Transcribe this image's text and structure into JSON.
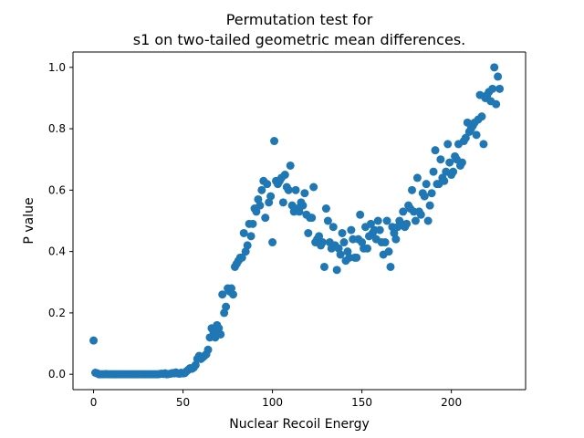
{
  "chart_data": {
    "type": "scatter",
    "title_line1": "Permutation test for",
    "title_line2": "s1 on two-tailed geometric mean differences.",
    "xlabel": "Nuclear Recoil Energy",
    "ylabel": "P value",
    "xlim": [
      -11.5,
      241.5
    ],
    "ylim": [
      -0.05,
      1.05
    ],
    "xticks": [
      0,
      50,
      100,
      150,
      200
    ],
    "xtick_labels": [
      "0",
      "50",
      "100",
      "150",
      "200"
    ],
    "yticks": [
      0.0,
      0.2,
      0.4,
      0.6,
      0.8,
      1.0
    ],
    "ytick_labels": [
      "0.0",
      "0.2",
      "0.4",
      "0.6",
      "0.8",
      "1.0"
    ],
    "grid": false,
    "legend": "none",
    "point_color": "#1f77b4",
    "points": [
      [
        0,
        0.11
      ],
      [
        1,
        0.005
      ],
      [
        2,
        0.003
      ],
      [
        3,
        0.0
      ],
      [
        4,
        0.0
      ],
      [
        5,
        0.0
      ],
      [
        6,
        0.0
      ],
      [
        7,
        0.001
      ],
      [
        8,
        0.0
      ],
      [
        9,
        0.0
      ],
      [
        10,
        0.0
      ],
      [
        11,
        0.0
      ],
      [
        12,
        0.0
      ],
      [
        13,
        0.0
      ],
      [
        14,
        0.0
      ],
      [
        15,
        0.0
      ],
      [
        16,
        0.0
      ],
      [
        17,
        0.0
      ],
      [
        18,
        0.0
      ],
      [
        19,
        0.0
      ],
      [
        20,
        0.0
      ],
      [
        21,
        0.0
      ],
      [
        22,
        0.0
      ],
      [
        23,
        0.0
      ],
      [
        24,
        0.0
      ],
      [
        25,
        0.0
      ],
      [
        26,
        0.0
      ],
      [
        27,
        0.0
      ],
      [
        28,
        0.0
      ],
      [
        29,
        0.0
      ],
      [
        30,
        0.0
      ],
      [
        31,
        0.0
      ],
      [
        32,
        0.0
      ],
      [
        33,
        0.0
      ],
      [
        34,
        0.0
      ],
      [
        35,
        0.0
      ],
      [
        36,
        0.0
      ],
      [
        37,
        0.001
      ],
      [
        38,
        0.002
      ],
      [
        39,
        0.001
      ],
      [
        40,
        0.003
      ],
      [
        41,
        0.0
      ],
      [
        42,
        0.001
      ],
      [
        43,
        0.002
      ],
      [
        44,
        0.004
      ],
      [
        45,
        0.003
      ],
      [
        46,
        0.006
      ],
      [
        47,
        0.003
      ],
      [
        48,
        0.002
      ],
      [
        49,
        0.005
      ],
      [
        50,
        0.003
      ],
      [
        51,
        0.004
      ],
      [
        52,
        0.01
      ],
      [
        53,
        0.015
      ],
      [
        54,
        0.02
      ],
      [
        55,
        0.018
      ],
      [
        56,
        0.022
      ],
      [
        57,
        0.03
      ],
      [
        58,
        0.05
      ],
      [
        59,
        0.06
      ],
      [
        60,
        0.05
      ],
      [
        61,
        0.055
      ],
      [
        62,
        0.06
      ],
      [
        63,
        0.065
      ],
      [
        64,
        0.08
      ],
      [
        65,
        0.12
      ],
      [
        66,
        0.15
      ],
      [
        67,
        0.14
      ],
      [
        68,
        0.12
      ],
      [
        69,
        0.16
      ],
      [
        70,
        0.15
      ],
      [
        71,
        0.13
      ],
      [
        72,
        0.26
      ],
      [
        73,
        0.2
      ],
      [
        74,
        0.22
      ],
      [
        75,
        0.28
      ],
      [
        76,
        0.27
      ],
      [
        77,
        0.28
      ],
      [
        78,
        0.26
      ],
      [
        79,
        0.35
      ],
      [
        80,
        0.36
      ],
      [
        81,
        0.37
      ],
      [
        82,
        0.38
      ],
      [
        83,
        0.38
      ],
      [
        84,
        0.46
      ],
      [
        85,
        0.4
      ],
      [
        86,
        0.42
      ],
      [
        87,
        0.49
      ],
      [
        88,
        0.45
      ],
      [
        89,
        0.49
      ],
      [
        90,
        0.54
      ],
      [
        91,
        0.53
      ],
      [
        92,
        0.57
      ],
      [
        93,
        0.55
      ],
      [
        94,
        0.6
      ],
      [
        95,
        0.63
      ],
      [
        96,
        0.51
      ],
      [
        97,
        0.62
      ],
      [
        98,
        0.56
      ],
      [
        99,
        0.58
      ],
      [
        100,
        0.43
      ],
      [
        101,
        0.76
      ],
      [
        102,
        0.63
      ],
      [
        103,
        0.62
      ],
      [
        104,
        0.63
      ],
      [
        105,
        0.64
      ],
      [
        106,
        0.56
      ],
      [
        107,
        0.65
      ],
      [
        108,
        0.61
      ],
      [
        109,
        0.6
      ],
      [
        110,
        0.68
      ],
      [
        111,
        0.55
      ],
      [
        112,
        0.53
      ],
      [
        113,
        0.6
      ],
      [
        114,
        0.54
      ],
      [
        115,
        0.53
      ],
      [
        116,
        0.56
      ],
      [
        117,
        0.55
      ],
      [
        118,
        0.59
      ],
      [
        119,
        0.52
      ],
      [
        120,
        0.46
      ],
      [
        121,
        0.51
      ],
      [
        122,
        0.51
      ],
      [
        123,
        0.61
      ],
      [
        124,
        0.43
      ],
      [
        125,
        0.44
      ],
      [
        126,
        0.45
      ],
      [
        127,
        0.42
      ],
      [
        128,
        0.43
      ],
      [
        129,
        0.35
      ],
      [
        130,
        0.54
      ],
      [
        131,
        0.5
      ],
      [
        132,
        0.43
      ],
      [
        133,
        0.41
      ],
      [
        134,
        0.48
      ],
      [
        135,
        0.42
      ],
      [
        136,
        0.34
      ],
      [
        137,
        0.41
      ],
      [
        138,
        0.39
      ],
      [
        139,
        0.46
      ],
      [
        140,
        0.43
      ],
      [
        141,
        0.37
      ],
      [
        142,
        0.4
      ],
      [
        143,
        0.38
      ],
      [
        144,
        0.47
      ],
      [
        145,
        0.44
      ],
      [
        146,
        0.38
      ],
      [
        147,
        0.38
      ],
      [
        148,
        0.44
      ],
      [
        149,
        0.52
      ],
      [
        150,
        0.43
      ],
      [
        151,
        0.41
      ],
      [
        152,
        0.48
      ],
      [
        153,
        0.41
      ],
      [
        154,
        0.45
      ],
      [
        155,
        0.49
      ],
      [
        156,
        0.46
      ],
      [
        157,
        0.47
      ],
      [
        158,
        0.44
      ],
      [
        159,
        0.5
      ],
      [
        160,
        0.47
      ],
      [
        161,
        0.43
      ],
      [
        162,
        0.39
      ],
      [
        163,
        0.43
      ],
      [
        164,
        0.5
      ],
      [
        165,
        0.4
      ],
      [
        166,
        0.35
      ],
      [
        167,
        0.48
      ],
      [
        168,
        0.46
      ],
      [
        169,
        0.44
      ],
      [
        170,
        0.48
      ],
      [
        171,
        0.5
      ],
      [
        172,
        0.49
      ],
      [
        173,
        0.53
      ],
      [
        174,
        0.48
      ],
      [
        175,
        0.49
      ],
      [
        176,
        0.55
      ],
      [
        177,
        0.54
      ],
      [
        178,
        0.6
      ],
      [
        179,
        0.53
      ],
      [
        180,
        0.5
      ],
      [
        181,
        0.64
      ],
      [
        182,
        0.53
      ],
      [
        183,
        0.52
      ],
      [
        184,
        0.59
      ],
      [
        185,
        0.58
      ],
      [
        186,
        0.62
      ],
      [
        187,
        0.5
      ],
      [
        188,
        0.55
      ],
      [
        189,
        0.59
      ],
      [
        190,
        0.66
      ],
      [
        191,
        0.73
      ],
      [
        192,
        0.62
      ],
      [
        193,
        0.62
      ],
      [
        194,
        0.7
      ],
      [
        195,
        0.64
      ],
      [
        196,
        0.63
      ],
      [
        197,
        0.66
      ],
      [
        198,
        0.75
      ],
      [
        199,
        0.69
      ],
      [
        200,
        0.65
      ],
      [
        201,
        0.66
      ],
      [
        202,
        0.71
      ],
      [
        203,
        0.7
      ],
      [
        204,
        0.75
      ],
      [
        205,
        0.68
      ],
      [
        206,
        0.69
      ],
      [
        207,
        0.76
      ],
      [
        208,
        0.77
      ],
      [
        209,
        0.82
      ],
      [
        210,
        0.79
      ],
      [
        211,
        0.8
      ],
      [
        212,
        0.81
      ],
      [
        213,
        0.82
      ],
      [
        214,
        0.78
      ],
      [
        215,
        0.83
      ],
      [
        216,
        0.91
      ],
      [
        217,
        0.84
      ],
      [
        218,
        0.75
      ],
      [
        219,
        0.9
      ],
      [
        220,
        0.91
      ],
      [
        221,
        0.92
      ],
      [
        222,
        0.89
      ],
      [
        223,
        0.93
      ],
      [
        224,
        1.0
      ],
      [
        225,
        0.88
      ],
      [
        226,
        0.97
      ],
      [
        227,
        0.93
      ]
    ]
  }
}
